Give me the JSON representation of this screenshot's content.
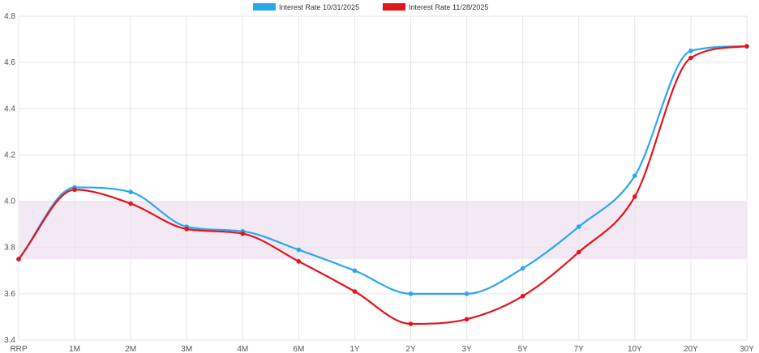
{
  "chart_data": {
    "type": "line",
    "title": "",
    "xlabel": "",
    "ylabel": "",
    "categories": [
      "RRP",
      "1M",
      "2M",
      "3M",
      "4M",
      "6M",
      "1Y",
      "2Y",
      "3Y",
      "5Y",
      "7Y",
      "10Y",
      "20Y",
      "30Y"
    ],
    "ylim": [
      3.4,
      4.8
    ],
    "yticks": [
      "3.4",
      "3.6",
      "3.8",
      "4.0",
      "4.2",
      "4.4",
      "4.6",
      "4.8"
    ],
    "grid": true,
    "legend_position": "top-center",
    "band": {
      "from": 3.75,
      "to": 4.0,
      "color": "#f3e9f5"
    },
    "series": [
      {
        "name": "Interest Rate 10/31/2025",
        "color": "#2aa7ef",
        "values": [
          3.75,
          4.06,
          4.04,
          3.89,
          3.87,
          3.79,
          3.7,
          3.6,
          3.6,
          3.71,
          3.89,
          4.11,
          4.65,
          4.67
        ]
      },
      {
        "name": "Interest Rate 11/28/2025",
        "color": "#e3141b",
        "values": [
          3.75,
          4.05,
          3.99,
          3.88,
          3.86,
          3.74,
          3.61,
          3.47,
          3.49,
          3.59,
          3.78,
          4.02,
          4.62,
          4.67
        ]
      }
    ]
  }
}
